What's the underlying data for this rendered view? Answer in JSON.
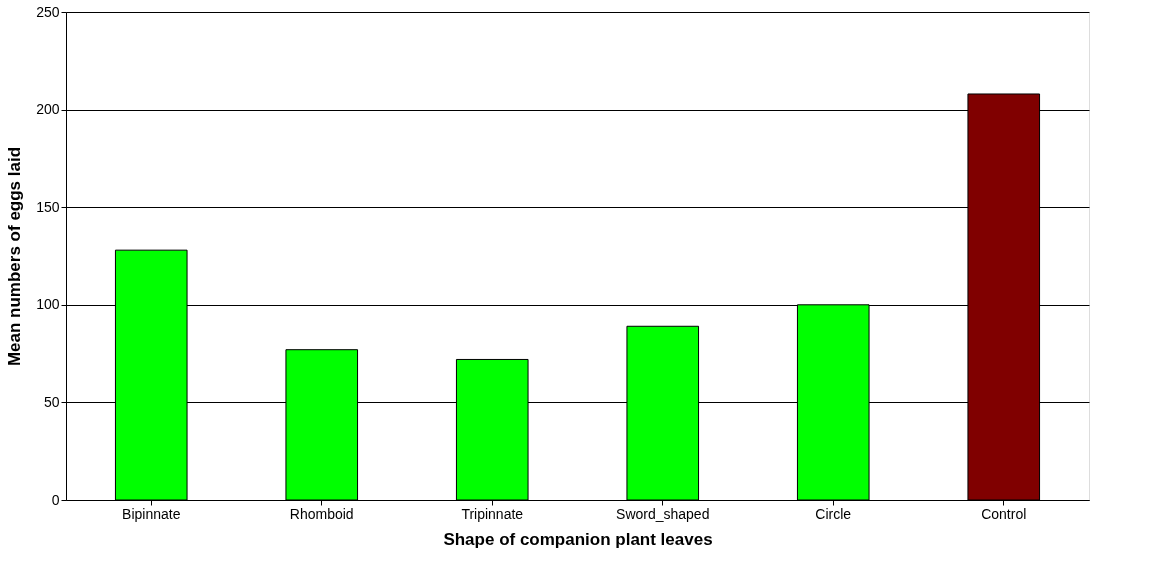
{
  "chart_data": {
    "type": "bar",
    "xlabel": "Shape of companion plant leaves",
    "ylabel": "Mean numbers of eggs laid",
    "categories": [
      "Bipinnate",
      "Rhomboid",
      "Tripinnate",
      "Sword_shaped",
      "Circle",
      "Control"
    ],
    "values": [
      128,
      77,
      72,
      89,
      100,
      208
    ],
    "colors": [
      "#00ff00",
      "#00ff00",
      "#00ff00",
      "#00ff00",
      "#00ff00",
      "#800000"
    ],
    "ylim": [
      0,
      250
    ],
    "yticks": [
      0,
      50,
      100,
      150,
      200,
      250
    ],
    "grid": "y"
  }
}
